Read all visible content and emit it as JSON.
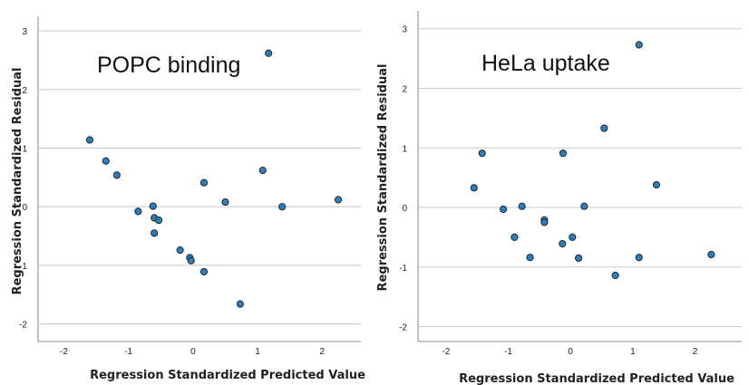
{
  "chart_data": [
    {
      "type": "scatter",
      "title": "POPC binding",
      "xlabel": "Regression Standardized Predicted Value",
      "ylabel": "Regression Standardized Residual",
      "xlim": [
        -2.4,
        2.6
      ],
      "ylim": [
        -2.3,
        3.25
      ],
      "xticks": [
        -2,
        -1,
        0,
        1,
        2
      ],
      "yticks": [
        -2,
        -1,
        0,
        1,
        2,
        3
      ],
      "grid": "horizontal",
      "points": [
        {
          "x": -1.6,
          "y": 1.14
        },
        {
          "x": -1.35,
          "y": 0.78
        },
        {
          "x": -1.18,
          "y": 0.54
        },
        {
          "x": -0.85,
          "y": -0.08
        },
        {
          "x": -0.62,
          "y": 0.01
        },
        {
          "x": -0.6,
          "y": -0.19
        },
        {
          "x": -0.53,
          "y": -0.23
        },
        {
          "x": -0.6,
          "y": -0.45
        },
        {
          "x": -0.2,
          "y": -0.74
        },
        {
          "x": -0.05,
          "y": -0.87
        },
        {
          "x": -0.03,
          "y": -0.92
        },
        {
          "x": 0.17,
          "y": 0.41
        },
        {
          "x": 0.17,
          "y": -1.11
        },
        {
          "x": 0.5,
          "y": 0.08
        },
        {
          "x": 0.73,
          "y": -1.66
        },
        {
          "x": 1.08,
          "y": 0.62
        },
        {
          "x": 1.17,
          "y": 2.62
        },
        {
          "x": 1.38,
          "y": 0.0
        },
        {
          "x": 2.25,
          "y": 0.12
        }
      ]
    },
    {
      "type": "scatter",
      "title": "HeLa uptake",
      "xlabel": "Regression Standardized Predicted Value",
      "ylabel": "Regression Standardized Residual",
      "xlim": [
        -2.45,
        2.75
      ],
      "ylim": [
        -2.25,
        3.3
      ],
      "xticks": [
        -2,
        -1,
        0,
        1,
        2
      ],
      "yticks": [
        -2,
        -1,
        0,
        1,
        2,
        3
      ],
      "grid": "horizontal",
      "points": [
        {
          "x": -1.55,
          "y": 0.33
        },
        {
          "x": -1.42,
          "y": 0.91
        },
        {
          "x": -1.08,
          "y": -0.03
        },
        {
          "x": -0.9,
          "y": -0.5
        },
        {
          "x": -0.78,
          "y": 0.02
        },
        {
          "x": -0.65,
          "y": -0.84
        },
        {
          "x": -0.42,
          "y": -0.21
        },
        {
          "x": -0.42,
          "y": -0.25
        },
        {
          "x": -0.13,
          "y": -0.61
        },
        {
          "x": -0.12,
          "y": 0.91
        },
        {
          "x": 0.03,
          "y": -0.5
        },
        {
          "x": 0.13,
          "y": -0.85
        },
        {
          "x": 0.22,
          "y": 0.02
        },
        {
          "x": 0.54,
          "y": 1.33
        },
        {
          "x": 0.72,
          "y": -1.14
        },
        {
          "x": 1.1,
          "y": 2.73
        },
        {
          "x": 1.1,
          "y": -0.84
        },
        {
          "x": 1.38,
          "y": 0.38
        },
        {
          "x": 2.26,
          "y": -0.79
        }
      ]
    }
  ]
}
